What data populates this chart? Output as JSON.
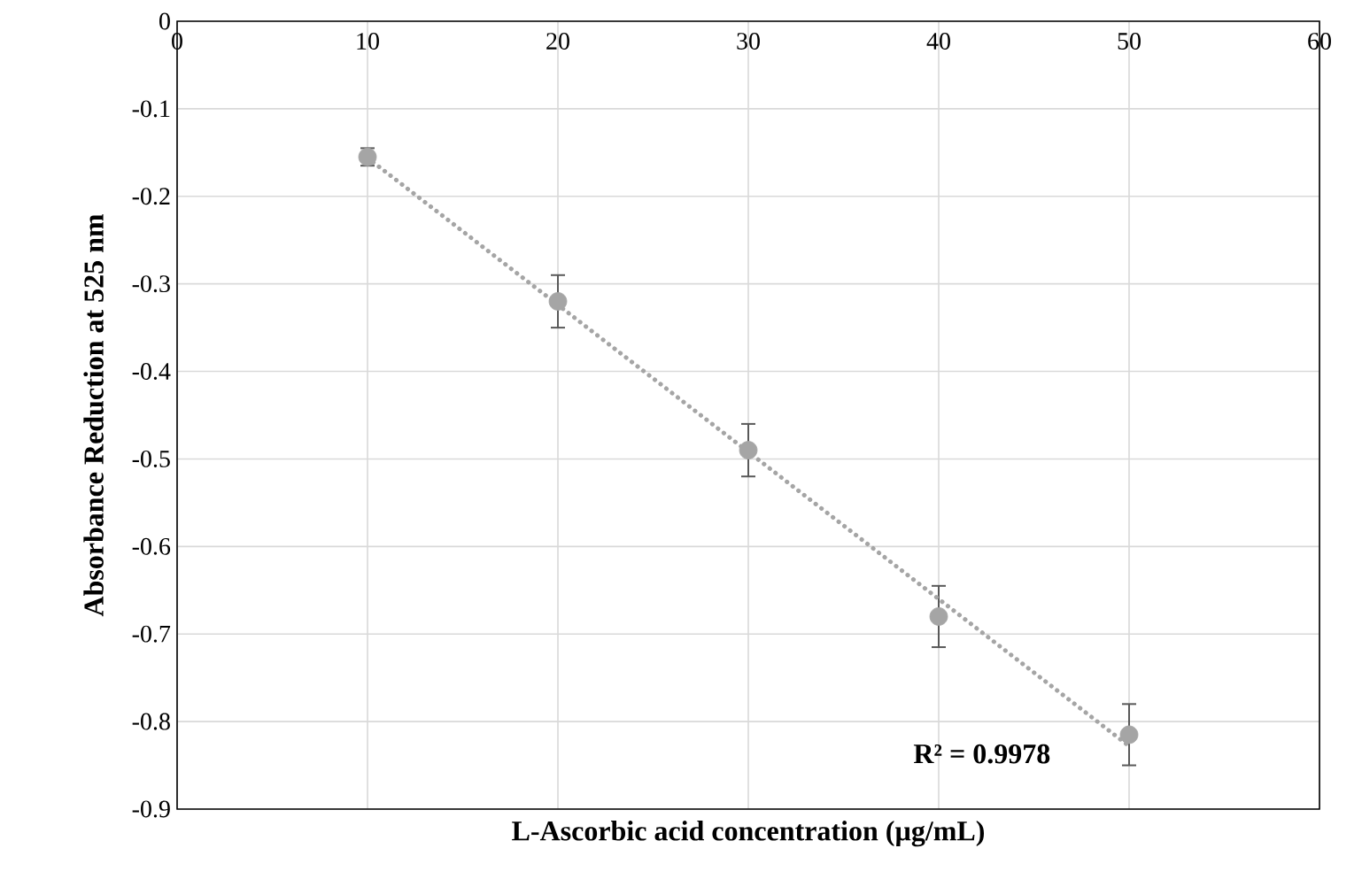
{
  "chart_data": {
    "type": "scatter",
    "xlabel": "L-Ascorbic acid concentration (µg/mL)",
    "ylabel": "Absorbance Reduction at 525 nm",
    "annotations": [
      "R² = 0.9978"
    ],
    "xlim": [
      0,
      60
    ],
    "ylim": [
      -0.9,
      0
    ],
    "xticks": [
      0,
      10,
      20,
      30,
      40,
      50,
      60
    ],
    "yticks": [
      -0.9,
      -0.8,
      -0.7,
      -0.6,
      -0.5,
      -0.4,
      -0.3,
      -0.2,
      -0.1,
      0
    ],
    "grid": true,
    "series": [
      {
        "color": "#a5a5a5",
        "marker": "circle",
        "x": [
          10,
          20,
          30,
          40,
          50
        ],
        "values": [
          -0.155,
          -0.32,
          -0.49,
          -0.68,
          -0.815
        ],
        "errors": [
          0.01,
          0.03,
          0.03,
          0.035,
          0.035
        ]
      },
      {
        "type": "line",
        "color": "#a5a5a5",
        "marker": "none",
        "line_style": "dotted",
        "x": [
          10,
          50
        ],
        "values": [
          -0.156,
          -0.828
        ]
      }
    ]
  }
}
